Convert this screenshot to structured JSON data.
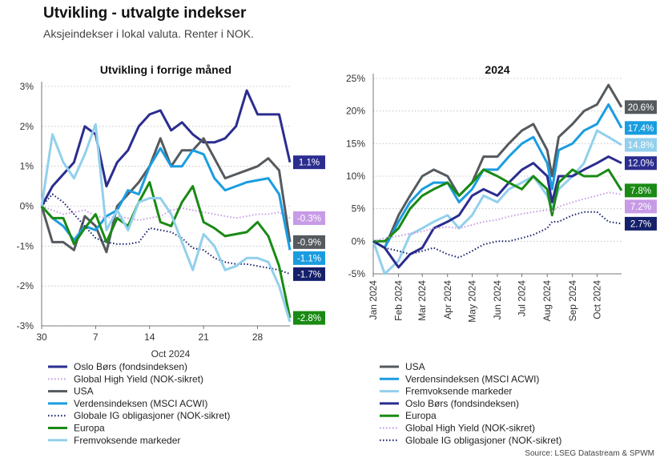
{
  "title": "Utvikling - utvalgte indekser",
  "subtitle": "Aksjeindekser i lokal valuta. Renter i NOK.",
  "source": "Source: LSEG Datastream & SPWM",
  "colors": {
    "oslo": "#2b2d8f",
    "hy": "#c79be6",
    "usa": "#555a5e",
    "world": "#1a9de0",
    "ig": "#15206b",
    "europa": "#1a8a14",
    "em": "#92d0ec"
  },
  "chart_data": [
    {
      "type": "line",
      "title": "Utvikling i forrige måned",
      "xlabel": "Oct 2024",
      "x_ticks": [
        "30",
        "7",
        "14",
        "21",
        "28"
      ],
      "y_ticks": [
        "3%",
        "2%",
        "1%",
        "0%",
        "-1%",
        "-2%",
        "-3%"
      ],
      "ylim": [
        -3,
        3
      ],
      "grid": "horizontal dotted",
      "legend": "bottom",
      "x": [
        0,
        1,
        2,
        3,
        4,
        5,
        6,
        7,
        8,
        9,
        10,
        11,
        12,
        13,
        14,
        15,
        16,
        17,
        18,
        19,
        20,
        21,
        22,
        23
      ],
      "series": [
        {
          "name": "Oslo Børs (fondsindeksen)",
          "color_key": "oslo",
          "style": "solid",
          "end_label": "1.1%",
          "values": [
            0,
            0.5,
            0.8,
            1.1,
            2.0,
            1.8,
            0.5,
            1.1,
            1.4,
            2.0,
            2.3,
            2.4,
            1.9,
            2.1,
            1.8,
            1.6,
            1.6,
            1.7,
            2.0,
            2.9,
            2.3,
            2.3,
            2.3,
            1.1
          ]
        },
        {
          "name": "Global High Yield (NOK-sikret)",
          "color_key": "hy",
          "style": "dotted",
          "end_label": "-0.3%",
          "values": [
            0,
            -0.1,
            -0.2,
            -0.15,
            -0.1,
            -0.25,
            -0.3,
            -0.25,
            -0.3,
            -0.35,
            -0.3,
            -0.25,
            -0.1,
            -0.05,
            -0.1,
            -0.15,
            -0.2,
            -0.25,
            -0.3,
            -0.25,
            -0.2,
            -0.2,
            -0.15,
            -0.3
          ]
        },
        {
          "name": "USA",
          "color_key": "usa",
          "style": "solid",
          "end_label": "-0.9%",
          "values": [
            0,
            -0.9,
            -0.9,
            -1.1,
            -0.25,
            -0.5,
            -1.15,
            0.0,
            0.3,
            0.6,
            1.0,
            1.7,
            1.0,
            1.4,
            1.4,
            1.7,
            1.2,
            0.7,
            0.8,
            0.9,
            1.0,
            1.2,
            0.9,
            -0.9
          ]
        },
        {
          "name": "Verdensindeksen (MSCI ACWI)",
          "color_key": "world",
          "style": "solid",
          "end_label": "-1.1%",
          "values": [
            0,
            -0.3,
            -0.5,
            -0.85,
            -0.5,
            -0.6,
            -0.25,
            -0.1,
            0.4,
            0.3,
            1.0,
            1.45,
            1.0,
            1.0,
            1.4,
            1.3,
            0.7,
            0.4,
            0.5,
            0.6,
            0.65,
            0.7,
            0.3,
            -1.1
          ]
        },
        {
          "name": "Globale IG obligasjoner (NOK-sikret)",
          "color_key": "ig",
          "style": "dotted",
          "end_label": "-1.7%",
          "values": [
            0,
            0.3,
            0.1,
            -0.2,
            -0.5,
            -0.8,
            -0.9,
            -0.95,
            -0.95,
            -0.9,
            -0.55,
            -0.6,
            -0.65,
            -0.8,
            -1.05,
            -1.1,
            -1.3,
            -1.4,
            -1.45,
            -1.45,
            -1.5,
            -1.55,
            -1.6,
            -1.7
          ]
        },
        {
          "name": "Europa",
          "color_key": "europa",
          "style": "solid",
          "end_label": "-2.8%",
          "values": [
            0,
            -0.3,
            -0.3,
            -0.95,
            -0.55,
            -0.2,
            -0.9,
            -0.3,
            -0.5,
            0.1,
            0.6,
            -0.4,
            -0.5,
            0.1,
            0.5,
            -0.4,
            -0.55,
            -0.75,
            -0.7,
            -0.65,
            -0.4,
            -0.75,
            -1.5,
            -2.8
          ]
        },
        {
          "name": "Fremvoksende markeder",
          "color_key": "em",
          "style": "solid",
          "end_label": "",
          "values": [
            0,
            1.8,
            1.1,
            0.7,
            1.3,
            2.05,
            -0.6,
            -0.1,
            -0.6,
            0.1,
            0.2,
            0.2,
            -0.2,
            -0.9,
            -1.6,
            -0.7,
            -1.0,
            -1.6,
            -1.5,
            -1.3,
            -1.3,
            -1.4,
            -2.0,
            -2.9
          ]
        }
      ]
    },
    {
      "type": "line",
      "title": "2024",
      "x_ticks": [
        "Jan 2024",
        "Feb 2024",
        "Mar 2024",
        "Apr 2024",
        "May 2024",
        "Jun 2024",
        "Jul 2024",
        "Aug 2024",
        "Sep 2024",
        "Oct 2024"
      ],
      "y_ticks": [
        "25%",
        "20%",
        "15%",
        "10%",
        "5%",
        "0%",
        "-5%"
      ],
      "ylim": [
        -5,
        25
      ],
      "grid": "horizontal dotted",
      "legend": "bottom",
      "x": [
        "2024-01-01",
        "2024-01-15",
        "2024-02-01",
        "2024-02-15",
        "2024-03-01",
        "2024-03-15",
        "2024-04-01",
        "2024-04-15",
        "2024-05-01",
        "2024-05-15",
        "2024-06-01",
        "2024-06-15",
        "2024-07-01",
        "2024-07-15",
        "2024-08-01",
        "2024-08-07",
        "2024-08-15",
        "2024-09-01",
        "2024-09-15",
        "2024-10-01",
        "2024-10-15",
        "2024-10-31"
      ],
      "series": [
        {
          "name": "USA",
          "color_key": "usa",
          "style": "solid",
          "end_label": "20.6%",
          "values": [
            0,
            -1,
            4,
            7,
            10,
            11,
            10,
            7,
            9,
            13,
            13,
            15,
            17,
            18,
            14,
            10,
            16,
            18,
            20,
            21,
            24,
            20.6
          ]
        },
        {
          "name": "Verdensindeksen (MSCI ACWI)",
          "color_key": "world",
          "style": "solid",
          "end_label": "17.4%",
          "values": [
            0,
            -1,
            3,
            6,
            8,
            9,
            9,
            6,
            8,
            11,
            11,
            13,
            15,
            16,
            12,
            8,
            14,
            15,
            17,
            18,
            21,
            17.4
          ]
        },
        {
          "name": "Fremvoksende markeder",
          "color_key": "em",
          "style": "solid",
          "end_label": "14.8%",
          "values": [
            0,
            -5,
            -3,
            1,
            2,
            3,
            4,
            2,
            4,
            7,
            6,
            8,
            9,
            10,
            7,
            5,
            8,
            10,
            12,
            17,
            16,
            14.8
          ]
        },
        {
          "name": "Oslo Børs (fondsindeksen)",
          "color_key": "oslo",
          "style": "solid",
          "end_label": "12.0%",
          "values": [
            0,
            -1,
            -4,
            -2,
            -1,
            2,
            3,
            4,
            7,
            8,
            7,
            9,
            11,
            12,
            10,
            6,
            10,
            10,
            11,
            12,
            13,
            12.0
          ]
        },
        {
          "name": "Europa",
          "color_key": "europa",
          "style": "solid",
          "end_label": "7.8%",
          "values": [
            0,
            0,
            2,
            5,
            7,
            8,
            9,
            7,
            9,
            11,
            10,
            9,
            8,
            10,
            8,
            4,
            9,
            11,
            10,
            10,
            11,
            7.8
          ]
        },
        {
          "name": "Global High Yield (NOK-sikret)",
          "color_key": "hy",
          "style": "dotted",
          "end_label": "7.2%",
          "values": [
            0,
            0.5,
            0.8,
            1.2,
            1.5,
            2,
            2.2,
            2,
            2.5,
            3,
            3.3,
            3.8,
            4.2,
            4.5,
            4.8,
            4.6,
            5.3,
            6,
            6.5,
            7,
            7.5,
            7.2
          ]
        },
        {
          "name": "Globale IG obligasjoner (NOK-sikret)",
          "color_key": "ig",
          "style": "dotted",
          "end_label": "2.7%",
          "values": [
            0,
            -1,
            -1.5,
            -2,
            -1.5,
            -1,
            -2,
            -2.5,
            -1.5,
            -0.5,
            0,
            0,
            0.5,
            1,
            2,
            3,
            3,
            4,
            4.5,
            4.5,
            3,
            2.7
          ]
        }
      ]
    }
  ]
}
